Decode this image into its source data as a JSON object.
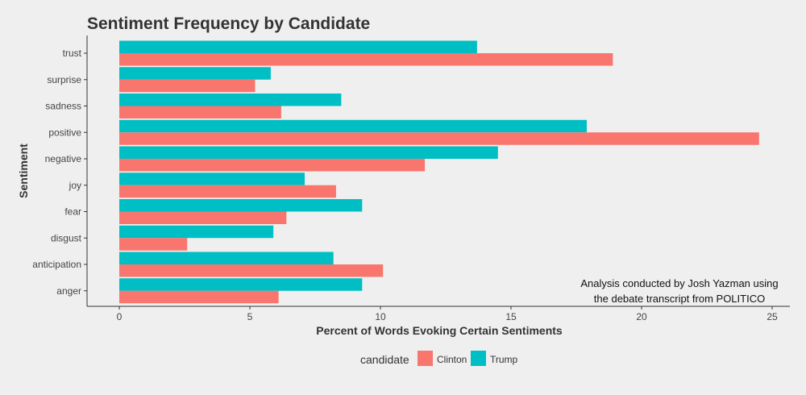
{
  "chart_data": {
    "type": "bar",
    "orientation": "horizontal",
    "title": "Sentiment Frequency by Candidate",
    "xlabel": "Percent of Words Evoking Certain Sentiments",
    "ylabel": "Sentiment",
    "xlim": [
      0,
      25
    ],
    "xticks": [
      0,
      5,
      10,
      15,
      20,
      25
    ],
    "categories": [
      "trust",
      "surprise",
      "sadness",
      "positive",
      "negative",
      "joy",
      "fear",
      "disgust",
      "anticipation",
      "anger"
    ],
    "series": [
      {
        "name": "Clinton",
        "color": "#f8766d",
        "values": [
          18.9,
          5.2,
          6.2,
          24.5,
          11.7,
          8.3,
          6.4,
          2.6,
          10.1,
          6.1
        ]
      },
      {
        "name": "Trump",
        "color": "#00bfc4",
        "values": [
          13.7,
          5.8,
          8.5,
          17.9,
          14.5,
          7.1,
          9.3,
          5.9,
          8.2,
          9.3
        ]
      }
    ],
    "legend": {
      "title": "candidate",
      "position": "bottom"
    },
    "grid": false,
    "annotation": [
      "Analysis conducted by Josh Yazman using",
      "the debate transcript from POLITICO"
    ]
  }
}
